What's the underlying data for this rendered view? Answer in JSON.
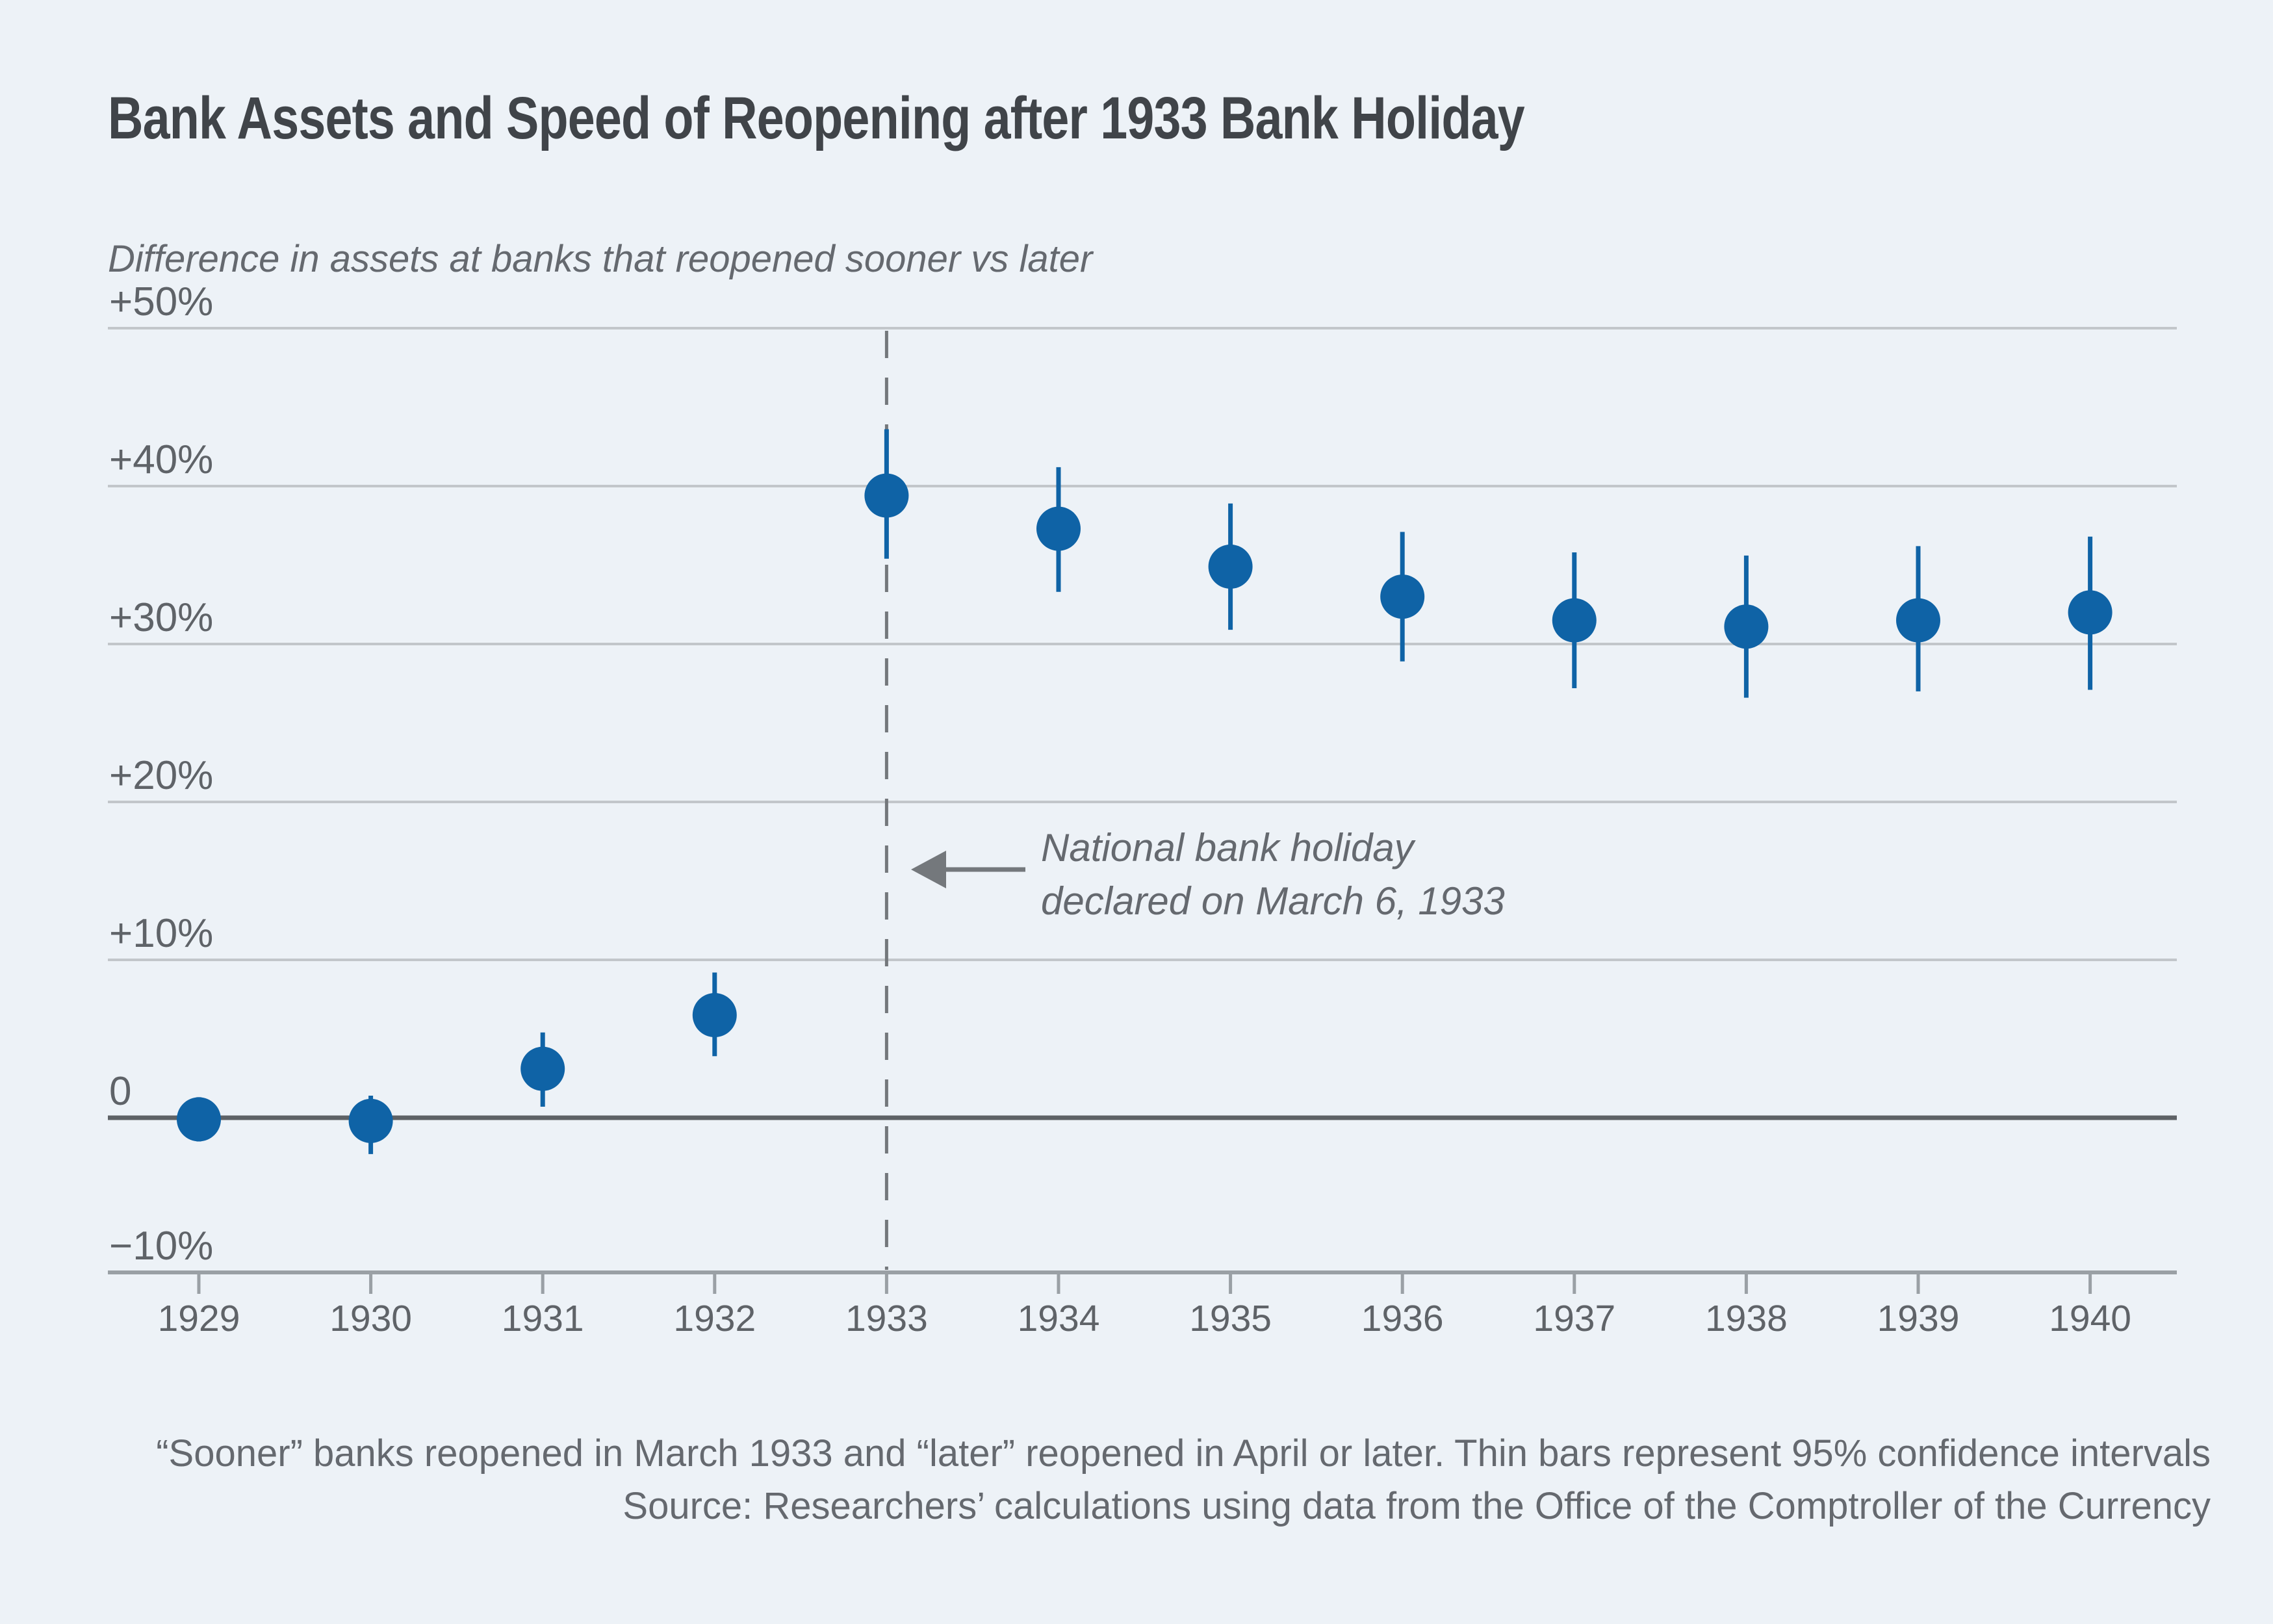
{
  "header": {
    "title": "Bank Assets and Speed of Reopening after 1933 Bank Holiday",
    "subtitle": "Difference in assets at banks that reopened sooner vs later"
  },
  "annotation": {
    "line1": "National bank holiday",
    "line2": "declared on March 6, 1933"
  },
  "footer": {
    "line1": "“Sooner” banks reopened in March 1933 and “later” reopened in April or later. Thin bars represent 95% confidence intervals",
    "line2": "Source: Researchers’ calculations using data from the Office of the Comptroller of the Currency"
  },
  "colors": {
    "background": "#edf2f7",
    "marker": "#0f63a6",
    "gridline": "#c2c6ca",
    "zero_line": "#5e6266",
    "axis": "#9aa0a5",
    "dashed_line": "#74787c",
    "arrow": "#74787c",
    "title_text": "#404449",
    "muted_text": "#65696f",
    "tick_text": "#5f6368"
  },
  "chart_data": {
    "type": "scatter",
    "title": "Bank Assets and Speed of Reopening after 1933 Bank Holiday",
    "ylabel": "Difference in assets at banks that reopened sooner vs later",
    "x": [
      1929,
      1930,
      1931,
      1932,
      1933,
      1934,
      1935,
      1936,
      1937,
      1938,
      1939,
      1940
    ],
    "series": [
      {
        "name": "Difference in assets at banks that reopened sooner vs later (%)",
        "values": [
          -0.1,
          -0.2,
          3.1,
          6.5,
          39.4,
          37.3,
          34.9,
          33.0,
          31.5,
          31.1,
          31.5,
          32.0
        ],
        "ci_low": [
          -1.5,
          -2.3,
          0.7,
          3.9,
          35.4,
          33.3,
          30.9,
          28.9,
          27.2,
          26.6,
          27.0,
          27.1
        ],
        "ci_high": [
          1.3,
          1.4,
          5.4,
          9.2,
          43.6,
          41.2,
          38.9,
          37.1,
          35.8,
          35.6,
          36.2,
          36.8
        ]
      }
    ],
    "ytick_values": [
      50,
      40,
      30,
      20,
      10,
      0,
      -10
    ],
    "ytick_labels": [
      "+50%",
      "+40%",
      "+30%",
      "+20%",
      "+10%",
      "0",
      "−10%"
    ],
    "ylim": [
      -13,
      52
    ],
    "grid": true,
    "legend_position": "none",
    "event_line_x": 1933,
    "event_label": "National bank holiday declared on March 6, 1933",
    "ci_note": "Thin bars represent 95% confidence intervals"
  }
}
